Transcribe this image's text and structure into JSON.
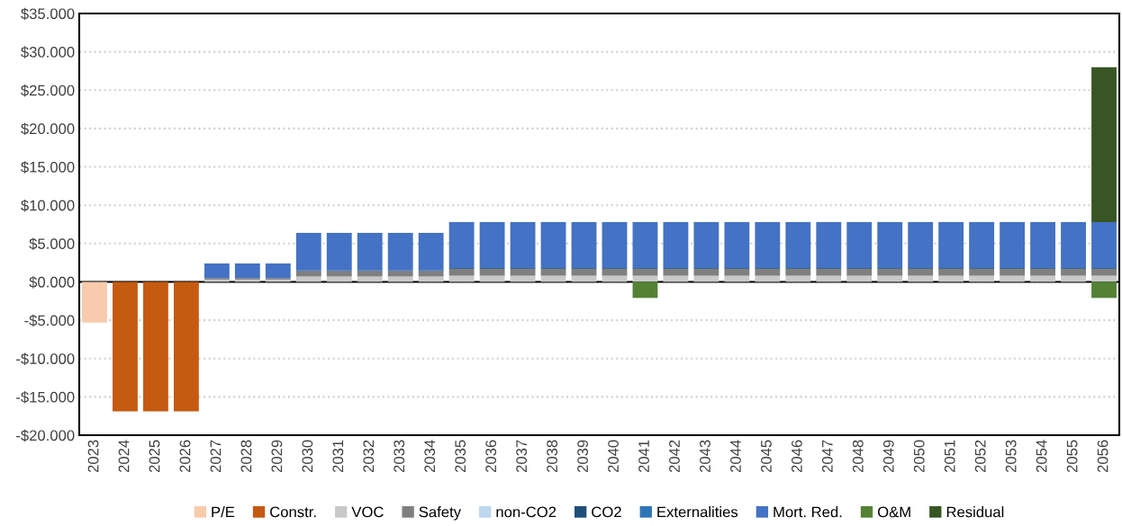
{
  "chart_data": {
    "type": "bar",
    "stacked": true,
    "categories": [
      "2023",
      "2024",
      "2025",
      "2026",
      "2027",
      "2028",
      "2029",
      "2030",
      "2031",
      "2032",
      "2033",
      "2034",
      "2035",
      "2036",
      "2037",
      "2038",
      "2039",
      "2040",
      "2041",
      "2042",
      "2043",
      "2044",
      "2045",
      "2046",
      "2047",
      "2048",
      "2049",
      "2050",
      "2051",
      "2052",
      "2053",
      "2054",
      "2055",
      "2056"
    ],
    "series": [
      {
        "name": "P/E",
        "color": "#f8cbad",
        "values": [
          -5.3,
          0,
          0,
          0,
          0,
          0,
          0,
          0,
          0,
          0,
          0,
          0,
          0,
          0,
          0,
          0,
          0,
          0,
          0,
          0,
          0,
          0,
          0,
          0,
          0,
          0,
          0,
          0,
          0,
          0,
          0,
          0,
          0,
          0
        ]
      },
      {
        "name": "Constr.",
        "color": "#c55a11",
        "values": [
          0,
          -16.9,
          -16.9,
          -16.9,
          0,
          0,
          0,
          0,
          0,
          0,
          0,
          0,
          0,
          0,
          0,
          0,
          0,
          0,
          0,
          0,
          0,
          0,
          0,
          0,
          0,
          0,
          0,
          0,
          0,
          0,
          0,
          0,
          0,
          0
        ]
      },
      {
        "name": "VOC",
        "color": "#c9c9c9",
        "values": [
          0,
          0,
          0,
          0,
          0.3,
          0.3,
          0.3,
          0.7,
          0.7,
          0.7,
          0.7,
          0.7,
          0.8,
          0.8,
          0.8,
          0.8,
          0.8,
          0.8,
          0.8,
          0.8,
          0.8,
          0.8,
          0.8,
          0.8,
          0.8,
          0.8,
          0.8,
          0.8,
          0.8,
          0.8,
          0.8,
          0.8,
          0.8,
          0.8
        ]
      },
      {
        "name": "Safety",
        "color": "#7f7f7f",
        "values": [
          0,
          0,
          0,
          0,
          0.2,
          0.2,
          0.2,
          0.7,
          0.7,
          0.7,
          0.7,
          0.7,
          0.9,
          0.9,
          0.9,
          0.9,
          0.9,
          0.9,
          0.9,
          0.9,
          0.9,
          0.9,
          0.9,
          0.9,
          0.9,
          0.9,
          0.9,
          0.9,
          0.9,
          0.9,
          0.9,
          0.9,
          0.9,
          0.9
        ]
      },
      {
        "name": "non-CO2",
        "color": "#bdd7ee",
        "values": [
          0,
          0,
          0,
          0,
          0,
          0,
          0,
          0,
          0,
          0,
          0,
          0,
          0,
          0,
          0,
          0,
          0,
          0,
          0,
          0,
          0,
          0,
          0,
          0,
          0,
          0,
          0,
          0,
          0,
          0,
          0,
          0,
          0,
          0
        ]
      },
      {
        "name": "CO2",
        "color": "#1f4e79",
        "values": [
          0,
          0,
          0,
          0,
          0,
          0,
          0,
          0.1,
          0.1,
          0.1,
          0.1,
          0.1,
          0.1,
          0.1,
          0.1,
          0.1,
          0.1,
          0.1,
          0.1,
          0.1,
          0.1,
          0.1,
          0.1,
          0.1,
          0.1,
          0.1,
          0.1,
          0.1,
          0.1,
          0.1,
          0.1,
          0.1,
          0.1,
          0.1
        ]
      },
      {
        "name": "Externalities",
        "color": "#2e75b6",
        "values": [
          0,
          0,
          0,
          0,
          0,
          0,
          0,
          0,
          0,
          0,
          0,
          0,
          0,
          0,
          0,
          0,
          0,
          0,
          0,
          0,
          0,
          0,
          0,
          0,
          0,
          0,
          0,
          0,
          0,
          0,
          0,
          0,
          0,
          0
        ]
      },
      {
        "name": "Mort. Red.",
        "color": "#4472c4",
        "values": [
          0,
          0,
          0,
          0,
          1.9,
          1.9,
          1.9,
          4.9,
          4.9,
          4.9,
          4.9,
          4.9,
          6.0,
          6.0,
          6.0,
          6.0,
          6.0,
          6.0,
          6.0,
          6.0,
          6.0,
          6.0,
          6.0,
          6.0,
          6.0,
          6.0,
          6.0,
          6.0,
          6.0,
          6.0,
          6.0,
          6.0,
          6.0,
          6.0
        ]
      },
      {
        "name": "O&M",
        "color": "#548235",
        "values": [
          0,
          0,
          0,
          0,
          0,
          0,
          0,
          0,
          0,
          0,
          0,
          0,
          0,
          0,
          0,
          0,
          0,
          0,
          -2.1,
          0,
          0,
          0,
          0,
          0,
          0,
          0,
          0,
          0,
          0,
          0,
          0,
          0,
          0,
          -2.1
        ]
      },
      {
        "name": "Residual",
        "color": "#375623",
        "values": [
          0,
          0,
          0,
          0,
          0,
          0,
          0,
          0,
          0,
          0,
          0,
          0,
          0,
          0,
          0,
          0,
          0,
          0,
          0,
          0,
          0,
          0,
          0,
          0,
          0,
          0,
          0,
          0,
          0,
          0,
          0,
          0,
          0,
          20.2
        ]
      }
    ],
    "ylim": [
      -20,
      35
    ],
    "yticks": [
      {
        "value": -20,
        "label": "-$20.000"
      },
      {
        "value": -15,
        "label": "-$15.000"
      },
      {
        "value": -10,
        "label": "-$10.000"
      },
      {
        "value": -5,
        "label": "-$5.000"
      },
      {
        "value": 0,
        "label": "$0.000"
      },
      {
        "value": 5,
        "label": "$5.000"
      },
      {
        "value": 10,
        "label": "$10.000"
      },
      {
        "value": 15,
        "label": "$15.000"
      },
      {
        "value": 20,
        "label": "$20.000"
      },
      {
        "value": 25,
        "label": "$25.000"
      },
      {
        "value": 30,
        "label": "$30.000"
      },
      {
        "value": 35,
        "label": "$35.000"
      }
    ],
    "grid": "y",
    "legend": "bottom"
  }
}
